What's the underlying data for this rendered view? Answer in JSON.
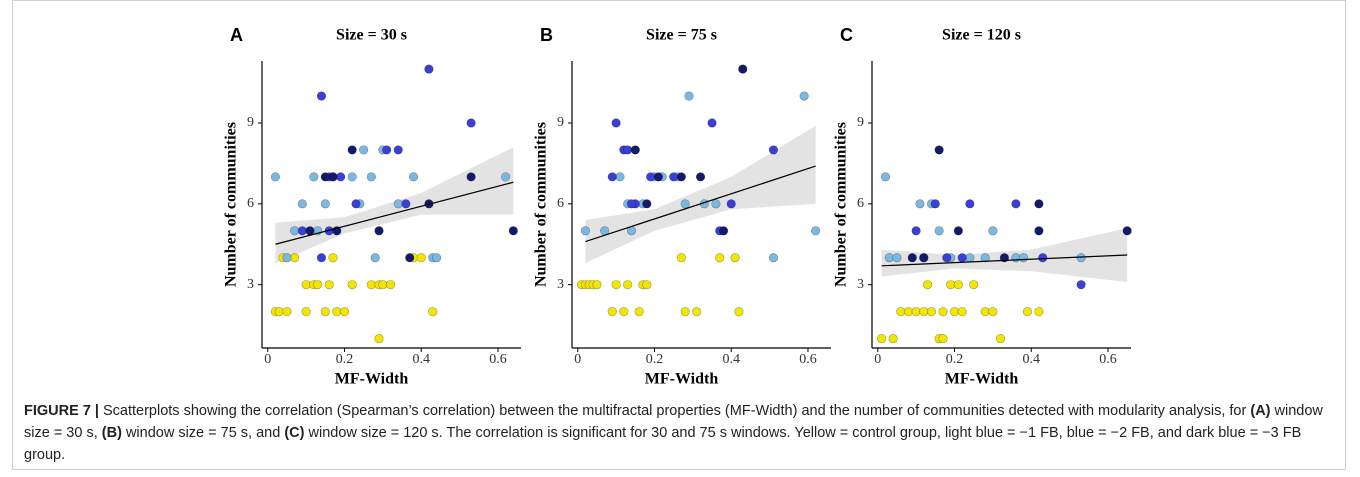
{
  "chart_data": [
    {
      "type": "scatter",
      "panel": "A",
      "title": "Size = 30 s",
      "xlabel": "MF-Width",
      "ylabel": "Number of communities",
      "xlim": [
        -0.015,
        0.66
      ],
      "ylim": [
        0.65,
        11.3
      ],
      "xticks": [
        0,
        0.2,
        0.4,
        0.6
      ],
      "yticks": [
        3,
        6,
        9
      ],
      "series": [
        {
          "color": "#f2e600",
          "x": [
            0.02,
            0.03,
            0.05,
            0.1,
            0.15,
            0.18,
            0.2,
            0.29,
            0.43,
            0.04,
            0.07,
            0.1,
            0.12,
            0.13,
            0.16,
            0.17,
            0.22,
            0.27,
            0.29,
            0.3,
            0.32,
            0.38,
            0.4
          ],
          "values": [
            2,
            2,
            2,
            2,
            2,
            2,
            2,
            1,
            2,
            4,
            4,
            3,
            3,
            3,
            3,
            4,
            3,
            3,
            3,
            3,
            3,
            4,
            4
          ]
        },
        {
          "color": "#7ab8e0",
          "x": [
            0.02,
            0.05,
            0.07,
            0.09,
            0.12,
            0.15,
            0.17,
            0.22,
            0.25,
            0.27,
            0.28,
            0.3,
            0.34,
            0.38,
            0.43,
            0.44,
            0.62,
            0.13,
            0.24
          ],
          "values": [
            7,
            4,
            5,
            6,
            7,
            6,
            7,
            7,
            8,
            7,
            4,
            8,
            6,
            7,
            4,
            4,
            7,
            5,
            6
          ]
        },
        {
          "color": "#3a3fd6",
          "x": [
            0.14,
            0.16,
            0.19,
            0.23,
            0.31,
            0.34,
            0.42,
            0.53,
            0.09,
            0.16,
            0.36,
            0.14
          ],
          "values": [
            10,
            7,
            7,
            6,
            8,
            8,
            11,
            9,
            5,
            5,
            6,
            4
          ]
        },
        {
          "color": "#141a6b",
          "x": [
            0.15,
            0.17,
            0.22,
            0.11,
            0.29,
            0.37,
            0.42,
            0.53,
            0.64,
            0.18
          ],
          "values": [
            7,
            7,
            8,
            5,
            5,
            4,
            6,
            7,
            5,
            5
          ]
        }
      ],
      "fit": {
        "x": [
          0.02,
          0.64
        ],
        "y": [
          4.5,
          6.8
        ]
      },
      "band": {
        "x": [
          0.02,
          0.2,
          0.4,
          0.64
        ],
        "lower": [
          3.8,
          4.9,
          5.6,
          5.6
        ],
        "upper": [
          5.3,
          5.5,
          6.4,
          8.1
        ]
      }
    },
    {
      "type": "scatter",
      "panel": "B",
      "title": "Size = 75 s",
      "xlabel": "MF-Width",
      "ylabel": "Number of communities",
      "xlim": [
        -0.015,
        0.66
      ],
      "ylim": [
        0.65,
        11.3
      ],
      "xticks": [
        0,
        0.2,
        0.4,
        0.6
      ],
      "yticks": [
        3,
        6,
        9
      ],
      "series": [
        {
          "color": "#f2e600",
          "x": [
            0.01,
            0.02,
            0.03,
            0.04,
            0.05,
            0.1,
            0.13,
            0.17,
            0.18,
            0.09,
            0.12,
            0.16,
            0.28,
            0.31,
            0.42,
            0.27,
            0.37,
            0.41
          ],
          "values": [
            3,
            3,
            3,
            3,
            3,
            3,
            3,
            3,
            3,
            2,
            2,
            2,
            2,
            2,
            2,
            4,
            4,
            4
          ]
        },
        {
          "color": "#7ab8e0",
          "x": [
            0.02,
            0.07,
            0.13,
            0.14,
            0.11,
            0.2,
            0.22,
            0.26,
            0.29,
            0.28,
            0.33,
            0.36,
            0.51,
            0.59,
            0.62,
            0.17
          ],
          "values": [
            5,
            5,
            6,
            5,
            7,
            7,
            7,
            7,
            10,
            6,
            6,
            6,
            4,
            10,
            5,
            6
          ]
        },
        {
          "color": "#3a3fd6",
          "x": [
            0.1,
            0.12,
            0.13,
            0.15,
            0.19,
            0.25,
            0.35,
            0.37,
            0.51,
            0.14,
            0.4,
            0.09
          ],
          "values": [
            9,
            8,
            8,
            6,
            7,
            7,
            9,
            5,
            8,
            6,
            6,
            7
          ]
        },
        {
          "color": "#141a6b",
          "x": [
            0.18,
            0.21,
            0.27,
            0.32,
            0.43,
            0.38,
            0.15
          ],
          "values": [
            6,
            7,
            7,
            7,
            11,
            5,
            8
          ]
        }
      ],
      "fit": {
        "x": [
          0.02,
          0.62
        ],
        "y": [
          4.6,
          7.4
        ]
      },
      "band": {
        "x": [
          0.02,
          0.2,
          0.4,
          0.62
        ],
        "lower": [
          3.8,
          5.0,
          5.8,
          6.0
        ],
        "upper": [
          5.4,
          5.8,
          7.0,
          8.9
        ]
      }
    },
    {
      "type": "scatter",
      "panel": "C",
      "title": "Size = 120 s",
      "xlabel": "MF-Width",
      "ylabel": "Number of communities",
      "xlim": [
        -0.015,
        0.66
      ],
      "ylim": [
        0.65,
        11.3
      ],
      "xticks": [
        0,
        0.2,
        0.4,
        0.6
      ],
      "yticks": [
        3,
        6,
        9
      ],
      "series": [
        {
          "color": "#f2e600",
          "x": [
            0.01,
            0.04,
            0.06,
            0.08,
            0.1,
            0.12,
            0.14,
            0.17,
            0.2,
            0.22,
            0.28,
            0.3,
            0.39,
            0.42,
            0.16,
            0.17,
            0.32,
            0.13,
            0.19,
            0.21,
            0.25
          ],
          "values": [
            1,
            1,
            2,
            2,
            2,
            2,
            2,
            2,
            2,
            2,
            2,
            2,
            2,
            2,
            1,
            1,
            1,
            3,
            3,
            3,
            3
          ]
        },
        {
          "color": "#7ab8e0",
          "x": [
            0.02,
            0.03,
            0.05,
            0.11,
            0.12,
            0.16,
            0.14,
            0.24,
            0.28,
            0.3,
            0.36,
            0.38,
            0.53,
            0.19
          ],
          "values": [
            7,
            4,
            4,
            6,
            4,
            5,
            6,
            4,
            4,
            5,
            4,
            4,
            4,
            4
          ]
        },
        {
          "color": "#3a3fd6",
          "x": [
            0.1,
            0.15,
            0.18,
            0.24,
            0.36,
            0.53,
            0.43,
            0.22
          ],
          "values": [
            5,
            6,
            4,
            6,
            6,
            3,
            4,
            4
          ]
        },
        {
          "color": "#141a6b",
          "x": [
            0.16,
            0.09,
            0.21,
            0.33,
            0.42,
            0.42,
            0.65,
            0.12
          ],
          "values": [
            8,
            4,
            5,
            4,
            6,
            5,
            5,
            4
          ]
        }
      ],
      "fit": {
        "x": [
          0.01,
          0.65
        ],
        "y": [
          3.7,
          4.1
        ]
      },
      "band": {
        "x": [
          0.01,
          0.2,
          0.4,
          0.65
        ],
        "lower": [
          3.3,
          3.6,
          3.5,
          3.1
        ],
        "upper": [
          4.3,
          4.1,
          4.3,
          5.1
        ]
      }
    }
  ],
  "caption": [
    "FIGURE 7 |",
    " Scatterplots showing the correlation (Spearman’s correlation) between the multifractal properties (MF-Width) and the number of communities detected with modularity analysis, for ",
    "(A)",
    " window size = 30 s, ",
    "(B)",
    " window size = 75 s, and ",
    "(C)",
    " window size = 120 s. The correlation is significant for 30 and 75 s windows. Yellow = control group, light blue = −1 FB, blue = −2 FB, and dark blue = −3 FB group."
  ]
}
